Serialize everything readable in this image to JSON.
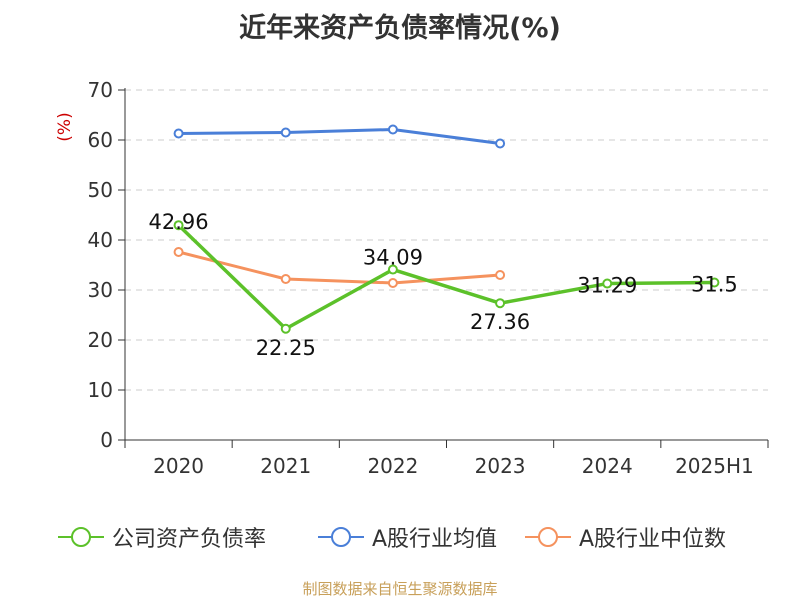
{
  "chart_data": {
    "type": "line",
    "title": "近年来资产负债率情况(%)",
    "ylabel": "(%)",
    "xlabel": "",
    "categories": [
      "2020",
      "2021",
      "2022",
      "2023",
      "2024",
      "2025H1"
    ],
    "ylim": [
      0,
      70
    ],
    "yticks": [
      0,
      10,
      20,
      30,
      40,
      50,
      60,
      70
    ],
    "grid": true,
    "legend_position": "bottom",
    "series": [
      {
        "name": "公司资产负债率",
        "color": "#5cc12a",
        "values": [
          42.96,
          22.25,
          34.09,
          27.36,
          31.29,
          31.5
        ],
        "labels": [
          "42.96",
          "22.25",
          "34.09",
          "27.36",
          "31.29",
          "31.5"
        ]
      },
      {
        "name": "A股行业均值",
        "color": "#4a7fd8",
        "values": [
          61.3,
          61.5,
          62.1,
          59.3,
          null,
          null
        ]
      },
      {
        "name": "A股行业中位数",
        "color": "#f5925e",
        "values": [
          37.6,
          32.2,
          31.4,
          33.0,
          null,
          null
        ]
      }
    ]
  },
  "source": "制图数据来自恒生聚源数据库"
}
